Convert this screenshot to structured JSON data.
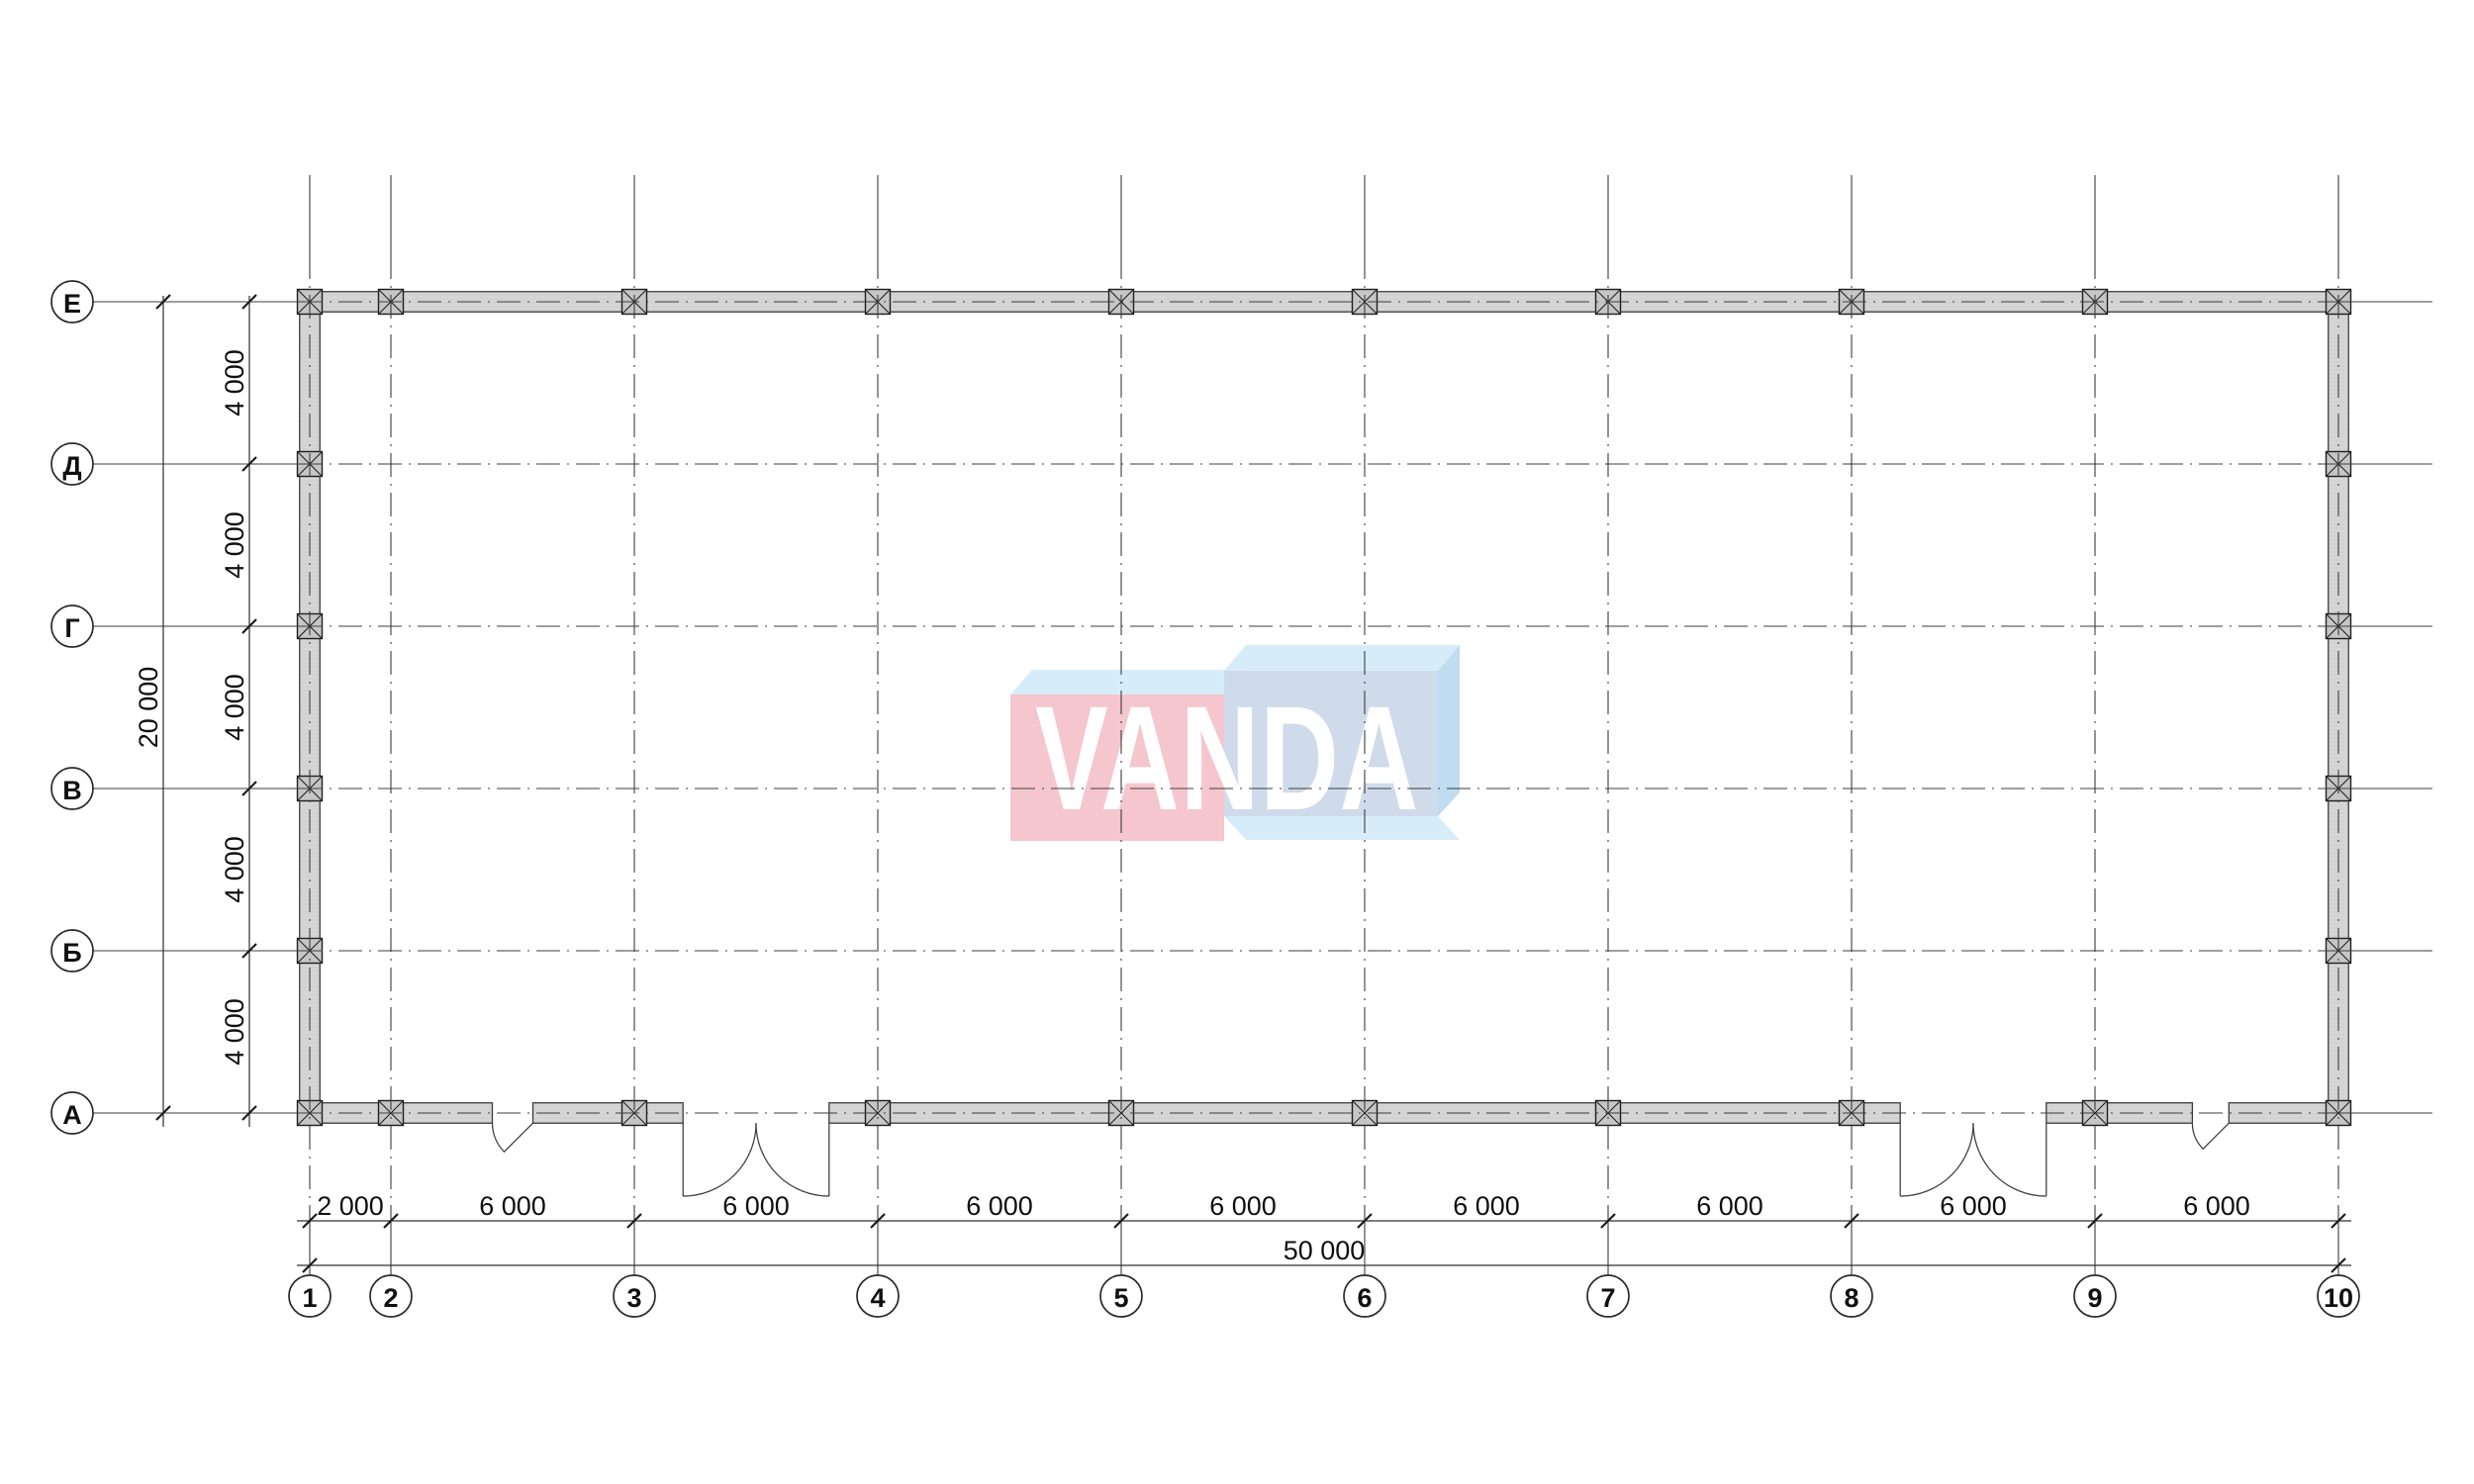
{
  "watermark": {
    "text": "VANDA",
    "colors": {
      "pink": "#f5c6ce",
      "cyan_face": "#d6edf9",
      "blue_front": "#ccd9e9",
      "blue_side": "#bfdcf0",
      "letters": "#ffffff"
    }
  },
  "grid": {
    "col_axes": [
      {
        "label": "1",
        "mm": 0
      },
      {
        "label": "2",
        "mm": 2000
      },
      {
        "label": "3",
        "mm": 8000
      },
      {
        "label": "4",
        "mm": 14000
      },
      {
        "label": "5",
        "mm": 20000
      },
      {
        "label": "6",
        "mm": 26000
      },
      {
        "label": "7",
        "mm": 32000
      },
      {
        "label": "8",
        "mm": 38000
      },
      {
        "label": "9",
        "mm": 44000
      },
      {
        "label": "10",
        "mm": 50000
      }
    ],
    "row_axes": [
      {
        "label": "Е",
        "mm": 0
      },
      {
        "label": "Д",
        "mm": 4000
      },
      {
        "label": "Г",
        "mm": 8000
      },
      {
        "label": "В",
        "mm": 12000
      },
      {
        "label": "Б",
        "mm": 16000
      },
      {
        "label": "А",
        "mm": 20000
      }
    ]
  },
  "dimensions": {
    "bottom_segments": [
      "2 000",
      "6 000",
      "6 000",
      "6 000",
      "6 000",
      "6 000",
      "6 000",
      "6 000",
      "6 000"
    ],
    "bottom_total": "50 000",
    "left_segments": [
      "4 000",
      "4 000",
      "4 000",
      "4 000",
      "4 000"
    ],
    "left_total": "20 000"
  },
  "plan": {
    "wall_thickness_mm": 500,
    "bottom_wall_openings_mm": [
      {
        "from": 4500,
        "to": 5500,
        "type": "single"
      },
      {
        "from": 9200,
        "to": 12800,
        "type": "double"
      },
      {
        "from": 39200,
        "to": 42800,
        "type": "double"
      },
      {
        "from": 46400,
        "to": 47300,
        "type": "single"
      }
    ]
  },
  "colors": {
    "wall_fill": "#d6d6d6",
    "wall_hatch": "#c9c9c9",
    "line": "#3d3d3d",
    "text": "#101010"
  }
}
